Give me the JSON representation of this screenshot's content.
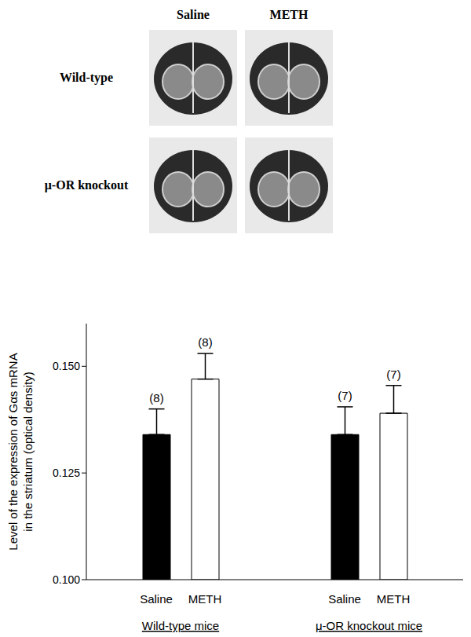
{
  "panel": {
    "column_labels": [
      "Saline",
      "METH"
    ],
    "row_labels": [
      "Wild-type",
      "μ-OR knockout"
    ]
  },
  "chart_data": {
    "type": "bar",
    "y_label": "Level of the expression of Gαs mRNA in the striatum (optical density)",
    "categories": [
      "Wild-type mice",
      "μ-OR knockout mice"
    ],
    "series": [
      {
        "name": "Saline",
        "color": "#000000",
        "values": [
          0.134,
          0.134
        ],
        "errors": [
          0.006,
          0.0065
        ],
        "n_labels": [
          "(8)",
          "(7)"
        ]
      },
      {
        "name": "METH",
        "color": "#ffffff",
        "values": [
          0.147,
          0.139
        ],
        "errors": [
          0.006,
          0.0065
        ],
        "n_labels": [
          "(8)",
          "(7)"
        ]
      }
    ],
    "ylim": [
      0.1,
      0.16
    ],
    "yticks": [
      {
        "value": 0.1,
        "label": "0.100"
      },
      {
        "value": 0.125,
        "label": "0.125"
      },
      {
        "value": 0.15,
        "label": "0.150"
      }
    ],
    "grid": false
  }
}
